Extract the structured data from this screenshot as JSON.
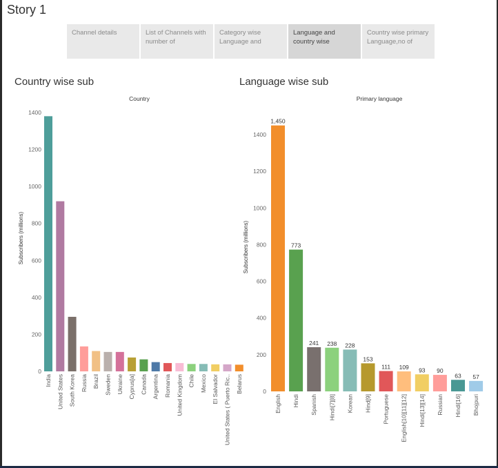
{
  "story": {
    "title": "Story 1"
  },
  "tabs": [
    {
      "label": "Channel details",
      "active": false
    },
    {
      "label": "List of Channels with number of Subscriber..",
      "active": false
    },
    {
      "label": "Category wise Language and countr..",
      "active": false
    },
    {
      "label": "Language and country wise Subscribers",
      "active": true
    },
    {
      "label": "Country wise primary Language,no of subsc..",
      "active": false
    }
  ],
  "sheets": {
    "country": {
      "title": "Country wise sub"
    },
    "language": {
      "title": "Language wise sub"
    }
  },
  "chart_data": [
    {
      "type": "bar",
      "title": "",
      "header": "Country",
      "xlabel": "",
      "ylabel": "Subscribers (millions)",
      "ylim": [
        0,
        1450
      ],
      "yticks": [
        0,
        200,
        400,
        600,
        800,
        1000,
        1200,
        1400
      ],
      "grid": false,
      "categories": [
        "India",
        "United States",
        "South Korea",
        "Russia",
        "Brazil",
        "Sweden",
        "Ukraine",
        "Cyprus[a]",
        "Canada",
        "Argentina",
        "Romania",
        "United Kingdom",
        "Chile",
        "Mexico",
        "El Salvador",
        "United States ( Puerto Ric..",
        "Belarus"
      ],
      "values": [
        1380,
        920,
        295,
        135,
        110,
        105,
        105,
        75,
        65,
        50,
        45,
        45,
        40,
        40,
        38,
        38,
        36
      ],
      "colors": [
        "#4e9e9a",
        "#b07aa1",
        "#7b706a",
        "#ff9d9a",
        "#f1c085",
        "#bab0ac",
        "#d4719a",
        "#b8a035",
        "#59a14f",
        "#4e79a7",
        "#e15759",
        "#f8bcd5",
        "#8cd17d",
        "#86bcb6",
        "#f1ce63",
        "#d4a6c8",
        "#f28e2b"
      ]
    },
    {
      "type": "bar",
      "title": "",
      "header": "Primary language",
      "xlabel": "",
      "ylabel": "Subscribers (millions)",
      "ylim": [
        0,
        1500
      ],
      "yticks": [
        0,
        200,
        400,
        600,
        800,
        1000,
        1200,
        1400
      ],
      "grid": false,
      "categories": [
        "English",
        "Hindi",
        "Spanish",
        "Hindi[7][8]",
        "Korean",
        "Hind[9]",
        "Portuguese",
        "English[10][11][12]",
        "Hindi[13][14]",
        "Russian",
        "Hindi[16]",
        "Bhojpuri"
      ],
      "values": [
        1450,
        773,
        241,
        238,
        228,
        153,
        111,
        109,
        93,
        90,
        63,
        57
      ],
      "data_labels": [
        "1,450",
        "773",
        "241",
        "238",
        "228",
        "153",
        "111",
        "109",
        "93",
        "90",
        "63",
        "57"
      ],
      "colors": [
        "#f28e2b",
        "#59a14f",
        "#79706e",
        "#8cd17d",
        "#86bcb6",
        "#b6992d",
        "#e15759",
        "#ffbe7d",
        "#f1ce63",
        "#ff9d9a",
        "#499894",
        "#a0cbe8"
      ]
    }
  ]
}
